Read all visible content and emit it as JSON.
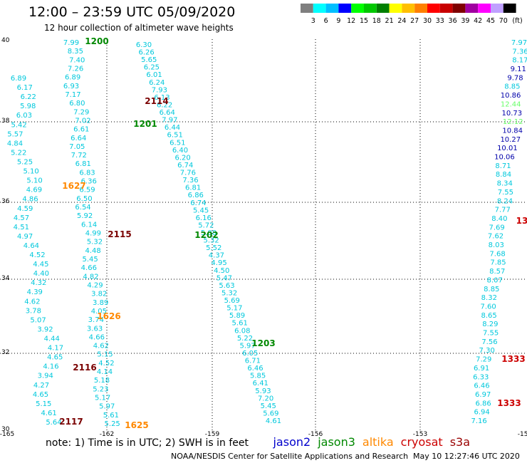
{
  "header": {
    "title": "12:00 – 23:59 UTC 05/09/2020",
    "subtitle": "12 hour collection of altimeter wave heights"
  },
  "legend": {
    "colors": [
      "#7f7f7f",
      "#00ffff",
      "#00bfff",
      "#0000ff",
      "#00ff00",
      "#00c800",
      "#007f00",
      "#ffff00",
      "#ffbf00",
      "#ff7f00",
      "#ff0000",
      "#c80000",
      "#7f0000",
      "#a000a0",
      "#ff00ff",
      "#c0a0ff",
      "#000000"
    ],
    "labels": [
      "3",
      "6",
      "9",
      "12",
      "15",
      "18",
      "21",
      "24",
      "27",
      "30",
      "33",
      "36",
      "39",
      "42",
      "45",
      "70",
      "(ft)"
    ]
  },
  "footer": {
    "note_prefix": "note:  1) Time is in UTC;  2) SWH is in feet",
    "satellites": [
      {
        "name": "jason2",
        "color": "#0000cc"
      },
      {
        "name": "jason3",
        "color": "#008800"
      },
      {
        "name": "altika",
        "color": "#ff8800"
      },
      {
        "name": "cryosat",
        "color": "#cc0000"
      },
      {
        "name": "s3a",
        "color": "#990000"
      }
    ],
    "credit": "NOAA/NESDIS Center for Satellite Applications and Research",
    "timestamp": "May 10 12:27:46 UTC 2020"
  },
  "map": {
    "lon_ticks": [
      "-165",
      "-162",
      "-159",
      "-156",
      "-153",
      "-150"
    ],
    "lat_ticks": [
      "40",
      "38",
      "36",
      "34",
      "32",
      "30"
    ],
    "colors": {
      "swh": "#00c8dc",
      "green": "#008800",
      "orange": "#ff8800",
      "maroon": "#7a0000",
      "red": "#cc0000",
      "navy": "#0000aa",
      "lime": "#66ff66"
    },
    "swh_groups": [
      {
        "id": "a",
        "values": [
          "7.99",
          "8.35",
          "7.40",
          "7.26",
          "6.89",
          "6.93",
          "7.17",
          "6.80",
          "7.29",
          "7.02",
          "6.61",
          "6.64",
          "7.05",
          "7.72",
          "6.81",
          "6.83",
          "6.36",
          "6.59",
          "6.50",
          "6.54",
          "5.92",
          "6.14",
          "4.99",
          "5.32",
          "4.48",
          "5.45",
          "4.66",
          "4.82",
          "4.29",
          "3.82",
          "3.89",
          "4.05",
          "3.74",
          "3.63",
          "4.66",
          "4.62",
          "5.15",
          "4.52",
          "4.14",
          "5.18",
          "5.23",
          "5.17",
          "5.97",
          "5.61",
          "5.25"
        ]
      },
      {
        "id": "b",
        "values": [
          "6.30",
          "6.26",
          "5.65",
          "6.25",
          "6.01",
          "6.24",
          "7.93",
          "6.13",
          "6.22",
          "6.64",
          "7.97",
          "6.44",
          "6.51",
          "6.51",
          "6.40",
          "6.20",
          "6.74",
          "7.76",
          "7.36",
          "6.81",
          "6.86",
          "6.74",
          "5.45",
          "6.16",
          "5.72",
          "5.08",
          "5.32",
          "5.52",
          "4.37",
          "4.95",
          "4.50",
          "5.47",
          "5.63",
          "5.32",
          "5.69",
          "5.17",
          "5.89",
          "5.61",
          "6.08",
          "5.22",
          "5.97",
          "6.05",
          "6.71",
          "6.46",
          "5.85",
          "6.41",
          "5.93",
          "7.20",
          "5.45",
          "5.69",
          "4.61"
        ]
      },
      {
        "id": "c",
        "values": [
          "6.89",
          "6.17",
          "6.22",
          "5.98",
          "6.03",
          "5.42",
          "5.57",
          "4.84",
          "5.22",
          "5.25",
          "5.10",
          "5.10",
          "4.69",
          "4.86",
          "4.59",
          "4.57",
          "4.51",
          "4.97",
          "4.64",
          "4.52",
          "4.45",
          "4.40",
          "4.32",
          "4.39",
          "4.62",
          "3.78",
          "5.07",
          "3.92",
          "4.44",
          "4.17",
          "4.65",
          "4.16",
          "3.94",
          "4.27",
          "4.65",
          "5.15",
          "4.61",
          "5.64"
        ]
      },
      {
        "id": "d",
        "values": [
          "7.97",
          "7.36",
          "8.17",
          "9.11",
          "9.78",
          "8.85",
          "10.86",
          "12.44",
          "10.73",
          "12.12",
          "10.84",
          "10.27",
          "10.01",
          "10.06",
          "8.71",
          "8.84",
          "8.34",
          "7.55",
          "8.24",
          "7.77",
          "8.40",
          "7.69",
          "7.62",
          "8.03",
          "7.68",
          "7.85",
          "8.57",
          "8.07",
          "8.85",
          "8.32",
          "7.60",
          "8.65",
          "8.29",
          "7.55",
          "7.56",
          "7.30",
          "7.29",
          "6.91",
          "6.33",
          "6.46",
          "6.97",
          "6.86",
          "6.94",
          "7.16"
        ]
      }
    ],
    "time_labels": [
      {
        "text": "1200",
        "color": "green"
      },
      {
        "text": "2114",
        "color": "maroon"
      },
      {
        "text": "1201",
        "color": "green"
      },
      {
        "text": "1627",
        "color": "orange"
      },
      {
        "text": "2115",
        "color": "maroon"
      },
      {
        "text": "1202",
        "color": "green"
      },
      {
        "text": "1626",
        "color": "orange"
      },
      {
        "text": "1203",
        "color": "green"
      },
      {
        "text": "2116",
        "color": "maroon"
      },
      {
        "text": "2117",
        "color": "maroon"
      },
      {
        "text": "1625",
        "color": "orange"
      },
      {
        "text": "1333",
        "color": "red"
      },
      {
        "text": "1333",
        "color": "red"
      },
      {
        "text": "13",
        "color": "red"
      }
    ]
  }
}
